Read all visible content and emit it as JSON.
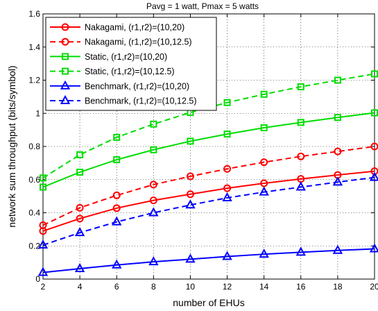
{
  "chart_data": {
    "type": "line",
    "title": "Pavg = 1 watt, Pmax = 5 watts",
    "xlabel": "number of EHUs",
    "ylabel": "network sum throughput (bits/symbol)",
    "xlim": [
      2,
      20
    ],
    "ylim": [
      0,
      1.6
    ],
    "xticks": [
      "2",
      "4",
      "6",
      "8",
      "10",
      "12",
      "14",
      "16",
      "18",
      "20"
    ],
    "yticks": [
      "0",
      "0.2",
      "0.4",
      "0.6",
      "0.8",
      "1",
      "1.2",
      "1.4",
      "1.6"
    ],
    "grid": true,
    "legend_position": "top-left",
    "x": [
      2,
      4,
      6,
      8,
      10,
      12,
      14,
      16,
      18,
      20
    ],
    "series": [
      {
        "name": "Nakagami, (r1,r2)=(10,20)",
        "color": "#ff0000",
        "dash": "solid",
        "marker": "circle",
        "values": [
          0.29,
          0.365,
          0.428,
          0.475,
          0.512,
          0.548,
          0.578,
          0.604,
          0.628,
          0.651
        ]
      },
      {
        "name": "Nakagami, (r1,r2)=(10,12.5)",
        "color": "#ff0000",
        "dash": "dashed",
        "marker": "circle",
        "values": [
          0.325,
          0.43,
          0.505,
          0.57,
          0.62,
          0.665,
          0.705,
          0.74,
          0.77,
          0.8
        ]
      },
      {
        "name": "Static, (r1,r2)=(10,20)",
        "color": "#00dd00",
        "dash": "solid",
        "marker": "square",
        "values": [
          0.555,
          0.645,
          0.72,
          0.78,
          0.832,
          0.875,
          0.913,
          0.945,
          0.975,
          1.003
        ]
      },
      {
        "name": "Static, (r1,r2)=(10,12.5)",
        "color": "#00dd00",
        "dash": "dashed",
        "marker": "square",
        "values": [
          0.61,
          0.75,
          0.855,
          0.935,
          1.005,
          1.065,
          1.115,
          1.16,
          1.2,
          1.238
        ]
      },
      {
        "name": "Benchmark, (r1,r2)=(10,20)",
        "color": "#0000ff",
        "dash": "solid",
        "marker": "triangle",
        "values": [
          0.04,
          0.063,
          0.085,
          0.104,
          0.12,
          0.136,
          0.15,
          0.162,
          0.173,
          0.182
        ]
      },
      {
        "name": "Benchmark, (r1,r2)=(10,12.5)",
        "color": "#0000ff",
        "dash": "dashed",
        "marker": "triangle",
        "values": [
          0.205,
          0.28,
          0.345,
          0.4,
          0.447,
          0.49,
          0.525,
          0.555,
          0.585,
          0.613
        ]
      }
    ]
  }
}
